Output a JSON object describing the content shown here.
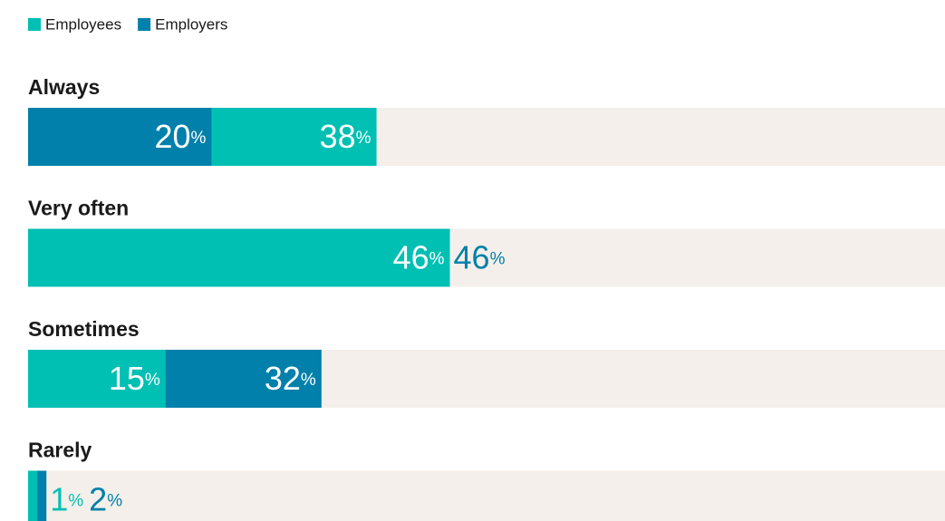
{
  "chart_data": {
    "type": "overlap-bar",
    "categories": [
      "Always",
      "Very often",
      "Sometimes",
      "Rarely"
    ],
    "series": [
      {
        "name": "Employees",
        "color": "#00bfb3",
        "values": [
          38,
          46,
          15,
          1
        ],
        "value_labels": [
          "38%",
          "46%",
          "15%",
          "1%"
        ]
      },
      {
        "name": "Employers",
        "color": "#0080aa",
        "values": [
          20,
          46,
          32,
          2
        ],
        "value_labels": [
          "20%",
          "46%",
          "32%",
          "2%"
        ]
      }
    ],
    "xlim": [
      0,
      100
    ],
    "track_color": "#f4efea"
  }
}
